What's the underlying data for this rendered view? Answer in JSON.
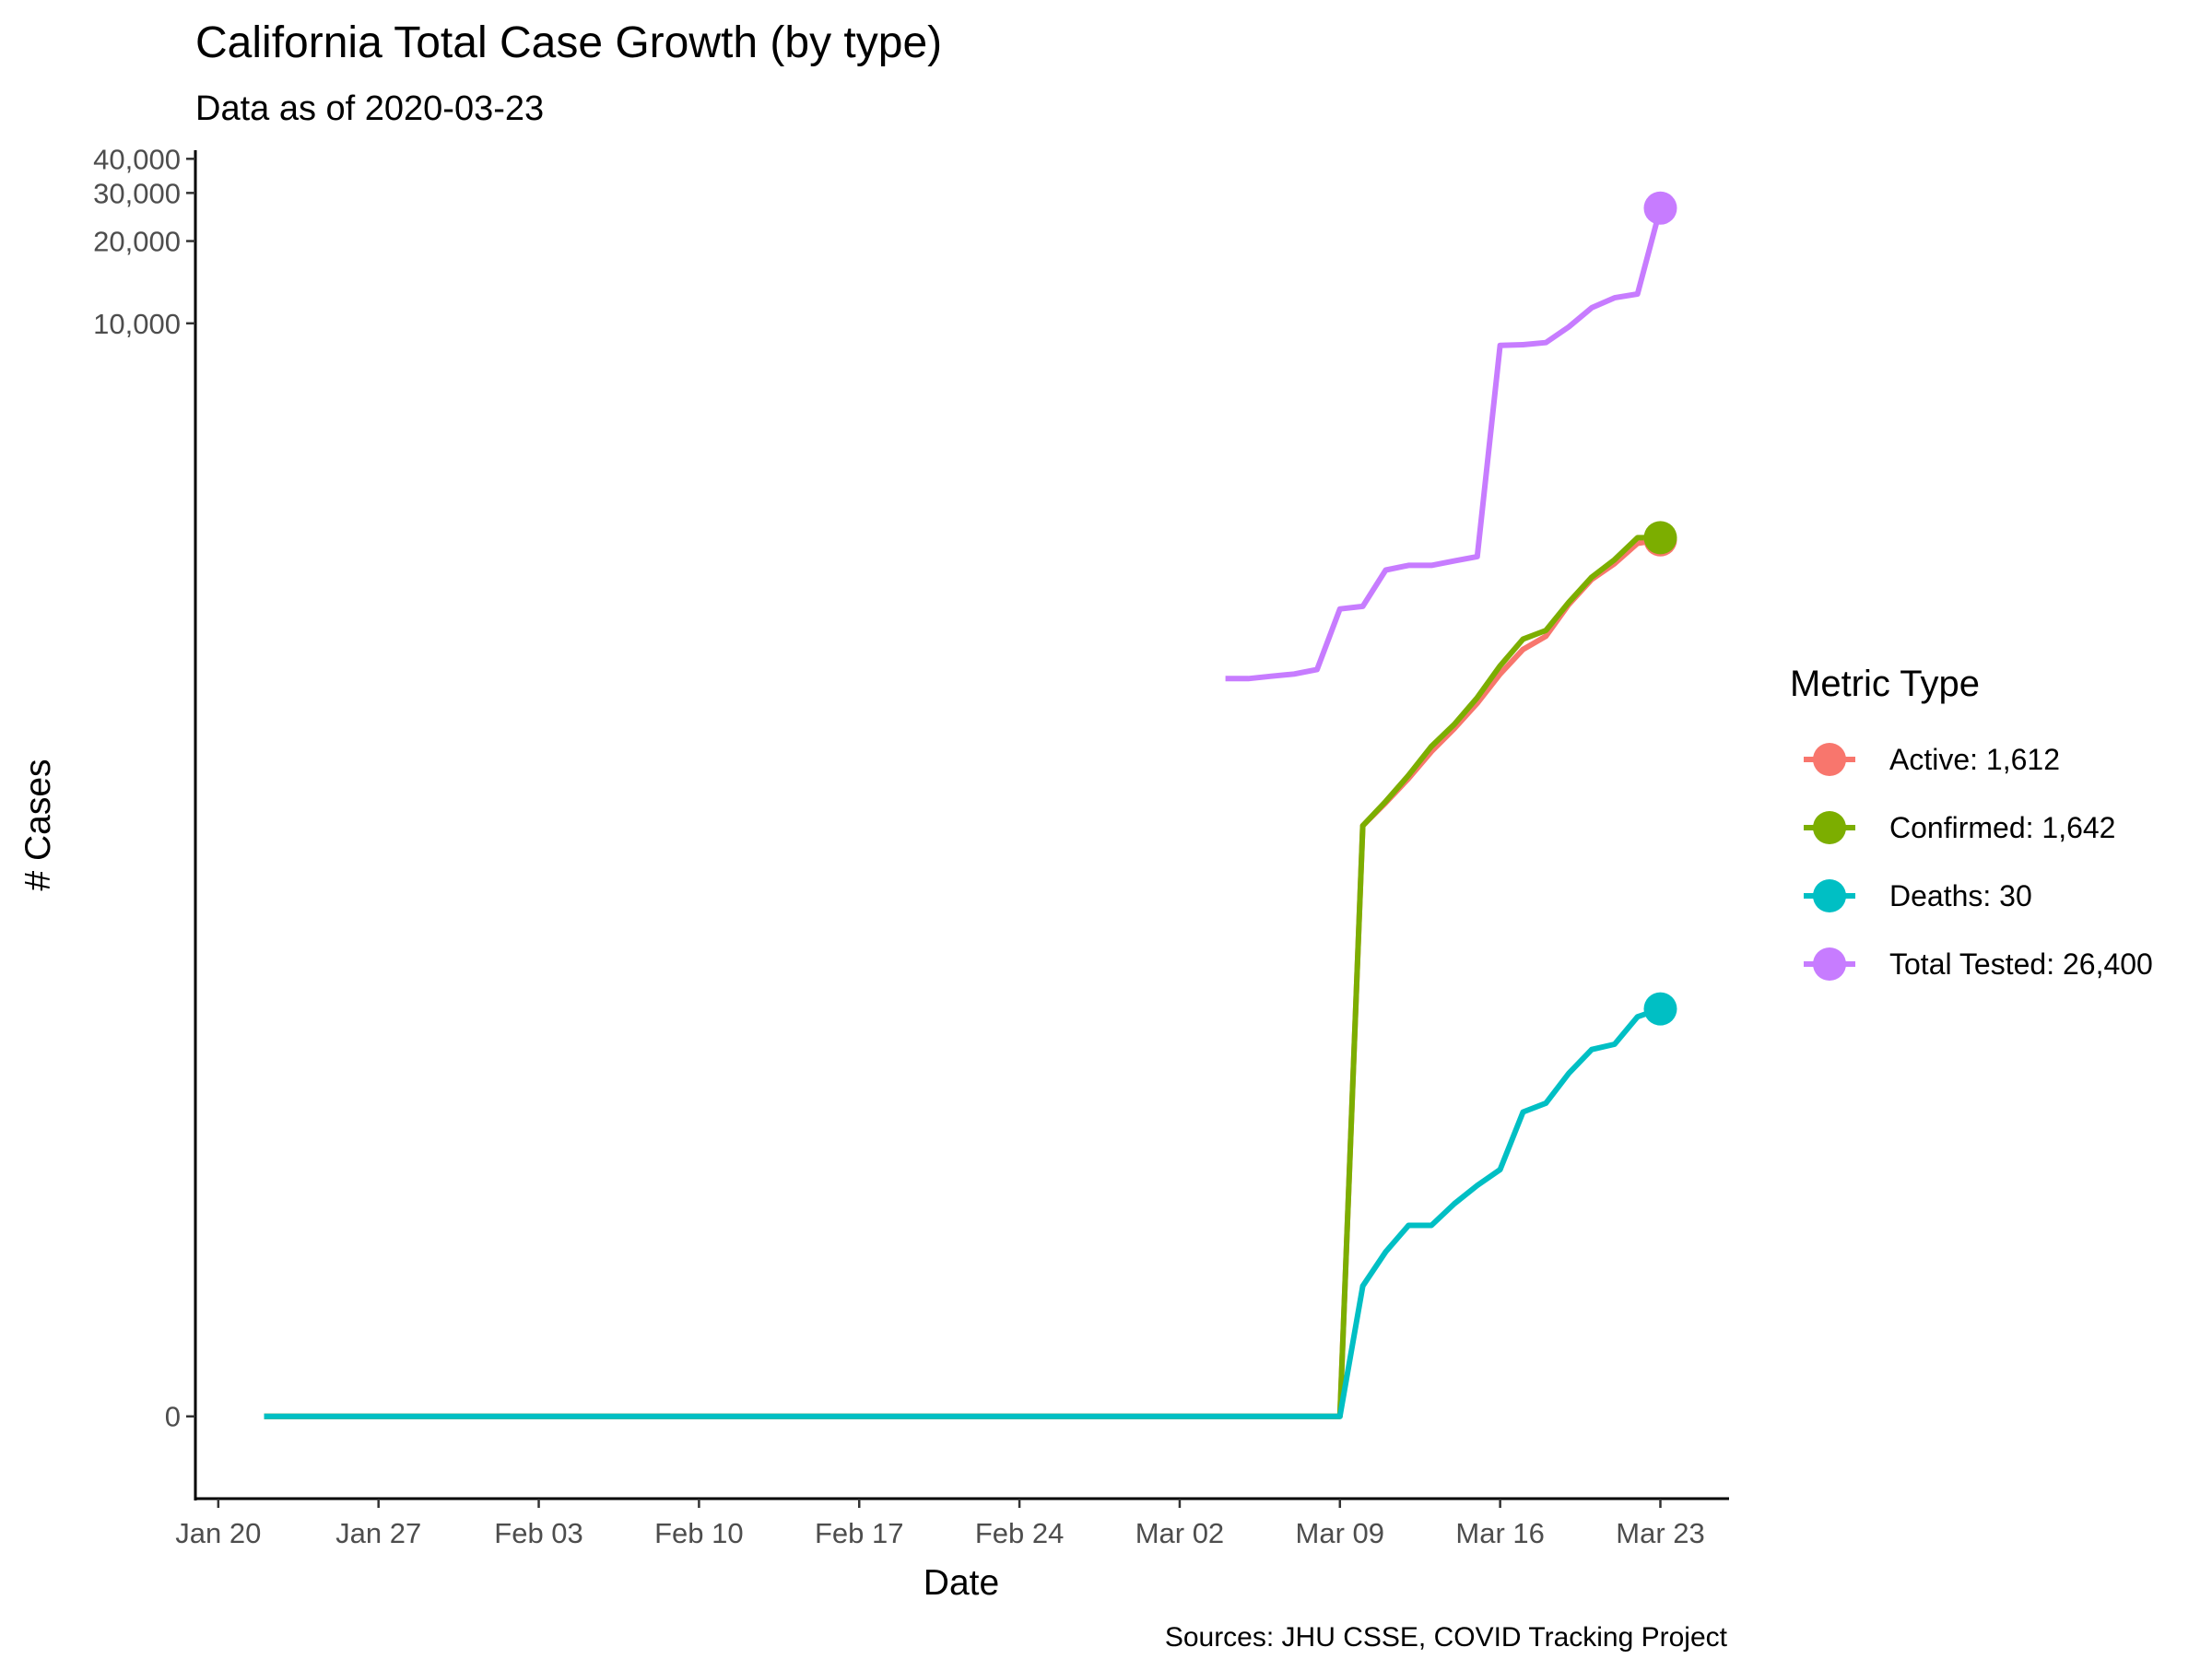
{
  "chart_data": {
    "type": "line",
    "title": "California Total Case Growth (by type)",
    "subtitle": "Data as of 2020-03-23",
    "xlabel": "Date",
    "ylabel": "# Cases",
    "caption": "Sources: JHU CSSE, COVID Tracking Project",
    "x_scale": "date",
    "y_scale": "log1p",
    "x_ticks": [
      "Jan 20",
      "Jan 27",
      "Feb 03",
      "Feb 10",
      "Feb 17",
      "Feb 24",
      "Mar 02",
      "Mar 09",
      "Mar 16",
      "Mar 23"
    ],
    "x_tick_dates": [
      "2020-01-20",
      "2020-01-27",
      "2020-02-03",
      "2020-02-10",
      "2020-02-17",
      "2020-02-24",
      "2020-03-02",
      "2020-03-09",
      "2020-03-16",
      "2020-03-23"
    ],
    "y_ticks": [
      {
        "value": 0,
        "label": "0"
      },
      {
        "value": 10000,
        "label": "10,000"
      },
      {
        "value": 20000,
        "label": "20,000"
      },
      {
        "value": 30000,
        "label": "30,000"
      },
      {
        "value": 40000,
        "label": "40,000"
      }
    ],
    "xlim": [
      "2020-01-19",
      "2020-03-26"
    ],
    "ylim": [
      -0.5,
      43000
    ],
    "grid": false,
    "legend": {
      "title": "Metric Type",
      "position": "right",
      "entries": [
        {
          "series": "Active",
          "label": "Active: 1,612"
        },
        {
          "series": "Confirmed",
          "label": "Confirmed: 1,642"
        },
        {
          "series": "Deaths",
          "label": "Deaths: 30"
        },
        {
          "series": "Total Tested",
          "label": "Total Tested: 26,400"
        }
      ]
    },
    "series": [
      {
        "name": "Active",
        "color": "#F8766D",
        "points": [
          [
            "2020-01-22",
            0
          ],
          [
            "2020-03-09",
            0
          ],
          [
            "2020-03-10",
            144
          ],
          [
            "2020-03-11",
            175
          ],
          [
            "2020-03-12",
            215
          ],
          [
            "2020-03-13",
            270
          ],
          [
            "2020-03-14",
            328
          ],
          [
            "2020-03-15",
            406
          ],
          [
            "2020-03-16",
            520
          ],
          [
            "2020-03-17",
            640
          ],
          [
            "2020-03-18",
            715
          ],
          [
            "2020-03-19",
            935
          ],
          [
            "2020-03-20",
            1155
          ],
          [
            "2020-03-21",
            1320
          ],
          [
            "2020-03-22",
            1565
          ],
          [
            "2020-03-23",
            1612
          ]
        ]
      },
      {
        "name": "Confirmed",
        "color": "#7CAE00",
        "points": [
          [
            "2020-01-22",
            0
          ],
          [
            "2020-03-09",
            0
          ],
          [
            "2020-03-10",
            144
          ],
          [
            "2020-03-11",
            177
          ],
          [
            "2020-03-12",
            221
          ],
          [
            "2020-03-13",
            282
          ],
          [
            "2020-03-14",
            340
          ],
          [
            "2020-03-15",
            426
          ],
          [
            "2020-03-16",
            557
          ],
          [
            "2020-03-17",
            698
          ],
          [
            "2020-03-18",
            751
          ],
          [
            "2020-03-19",
            952
          ],
          [
            "2020-03-20",
            1177
          ],
          [
            "2020-03-21",
            1364
          ],
          [
            "2020-03-22",
            1642
          ],
          [
            "2020-03-23",
            1642
          ]
        ]
      },
      {
        "name": "Deaths",
        "color": "#00BFC4",
        "points": [
          [
            "2020-01-22",
            0
          ],
          [
            "2020-03-09",
            0
          ],
          [
            "2020-03-10",
            2
          ],
          [
            "2020-03-11",
            3
          ],
          [
            "2020-03-12",
            4
          ],
          [
            "2020-03-13",
            4
          ],
          [
            "2020-03-14",
            5
          ],
          [
            "2020-03-15",
            6
          ],
          [
            "2020-03-16",
            7
          ],
          [
            "2020-03-17",
            12
          ],
          [
            "2020-03-18",
            13
          ],
          [
            "2020-03-19",
            17
          ],
          [
            "2020-03-20",
            21
          ],
          [
            "2020-03-21",
            22
          ],
          [
            "2020-03-22",
            28
          ],
          [
            "2020-03-23",
            30
          ]
        ]
      },
      {
        "name": "Total Tested",
        "color": "#C77CFF",
        "points": [
          [
            "2020-03-04",
            500
          ],
          [
            "2020-03-05",
            500
          ],
          [
            "2020-03-06",
            510
          ],
          [
            "2020-03-07",
            520
          ],
          [
            "2020-03-08",
            540
          ],
          [
            "2020-03-09",
            900
          ],
          [
            "2020-03-10",
            920
          ],
          [
            "2020-03-11",
            1250
          ],
          [
            "2020-03-12",
            1300
          ],
          [
            "2020-03-13",
            1300
          ],
          [
            "2020-03-14",
            1350
          ],
          [
            "2020-03-15",
            1400
          ],
          [
            "2020-03-16",
            8300
          ],
          [
            "2020-03-17",
            8350
          ],
          [
            "2020-03-18",
            8500
          ],
          [
            "2020-03-19",
            9700
          ],
          [
            "2020-03-20",
            11400
          ],
          [
            "2020-03-21",
            12400
          ],
          [
            "2020-03-22",
            12800
          ],
          [
            "2020-03-23",
            26400
          ]
        ]
      }
    ]
  }
}
